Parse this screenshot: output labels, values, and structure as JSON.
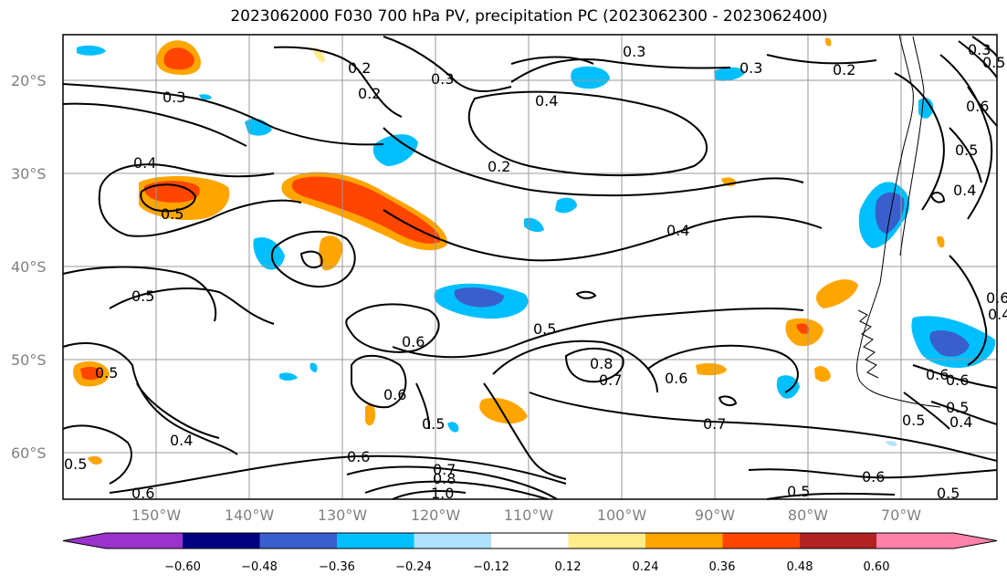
{
  "title": "2023062000 F030 700 hPa PV, precipitation PC (2023062300 - 2023062400)",
  "lon_ticks": [
    "150°W",
    "140°W",
    "130°W",
    "120°W",
    "110°W",
    "100°W",
    "90°W",
    "80°W",
    "70°W"
  ],
  "lat_ticks": [
    "20°S",
    "30°S",
    "40°S",
    "50°S",
    "60°S"
  ],
  "contour_labels": [
    "0.2",
    "0.3",
    "0.3",
    "0.2",
    "0.3",
    "0.4",
    "0.3",
    "0.2",
    "0.6",
    "0.3",
    "0.4",
    "0.5",
    "0.2",
    "0.4",
    "0.5",
    "0.4",
    "0.5",
    "0.6",
    "0.5",
    "0.6",
    "0.6",
    "0.8",
    "0.7",
    "0.6",
    "0.5",
    "0.6",
    "0.7",
    "0.4",
    "0.5",
    "0.5",
    "0.6",
    "0.7",
    "0.8",
    "1.0",
    "0.6",
    "0.5",
    "0.5",
    "0.6",
    "0.6",
    "0.4",
    "0.5",
    "0.4",
    "0.5",
    "0.5"
  ],
  "colorbar": {
    "colors": [
      "#9933cc",
      "#000080",
      "#3a5fcd",
      "#00bfff",
      "#b0e2ff",
      "#ffffff",
      "#ffec8b",
      "#ffa500",
      "#ff4500",
      "#b22222",
      "#ff82ab"
    ],
    "labels": [
      "−0.60",
      "−0.48",
      "−0.36",
      "−0.24",
      "−0.12",
      "0.12",
      "0.24",
      "0.36",
      "0.48",
      "0.60"
    ]
  },
  "map": {
    "projection": "plate carree",
    "lon_range": [
      "160°W",
      "62°W"
    ],
    "lat_range": [
      "15°S",
      "65°S"
    ],
    "fields": [
      "700 hPa PV (contours)",
      "precipitation PC (shaded)"
    ],
    "grid": true
  }
}
